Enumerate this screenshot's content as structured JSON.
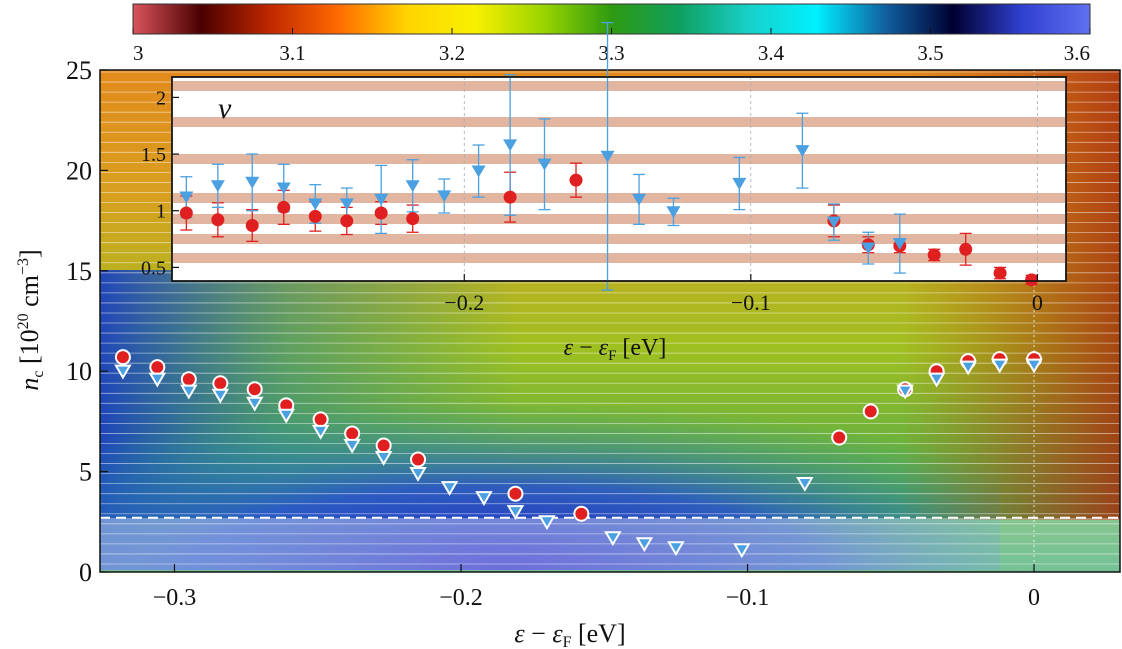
{
  "chart_data": [
    {
      "type": "heatmap",
      "name": "main-panel",
      "xlabel_parts": {
        "eps": "ε",
        "minus": " − ",
        "sub": "F",
        "unit": " [eV]"
      },
      "ylabel_parts": {
        "n": "n",
        "sub": "c",
        "unit_pre": " [10",
        "exp": "20",
        "unit_mid": " cm",
        "unit_exp": "−3",
        "unit_post": "]"
      },
      "xlim": [
        -0.326,
        0.03
      ],
      "ylim": [
        0,
        25
      ],
      "x_ticks": [
        -0.3,
        -0.2,
        -0.1,
        0
      ],
      "x_tick_labels": [
        "−0.3",
        "−0.2",
        "−0.1",
        "0"
      ],
      "y_ticks": [
        0,
        5,
        10,
        15,
        20,
        25
      ],
      "y_tick_labels": [
        "0",
        "5",
        "10",
        "15",
        "20",
        "25"
      ],
      "dashed_line_y": 2.7,
      "colorbar": {
        "range": [
          3.0,
          3.6
        ],
        "ticks": [
          3.0,
          3.1,
          3.2,
          3.3,
          3.4,
          3.5,
          3.6
        ],
        "tick_labels": [
          "3",
          "3.1",
          "3.2",
          "3.3",
          "3.4",
          "3.5",
          "3.6"
        ],
        "colors": [
          "#d8545c",
          "#4a0000",
          "#c02800",
          "#ff6a00",
          "#ffd400",
          "#f8f000",
          "#9ad400",
          "#2e9a10",
          "#10a060",
          "#18d0c8",
          "#00f0ff",
          "#1060a0",
          "#000030",
          "#3040d0",
          "#6070f0"
        ]
      },
      "series": [
        {
          "name": "circles",
          "marker": "circle",
          "color": "#e02020",
          "x": [
            -0.318,
            -0.306,
            -0.295,
            -0.284,
            -0.272,
            -0.261,
            -0.249,
            -0.238,
            -0.227,
            -0.215,
            -0.181,
            -0.158,
            -0.068,
            -0.057,
            -0.045,
            -0.034,
            -0.023,
            -0.012,
            0.0
          ],
          "y": [
            10.7,
            10.2,
            9.6,
            9.4,
            9.1,
            8.3,
            7.6,
            6.9,
            6.3,
            5.6,
            3.9,
            2.9,
            6.7,
            8.0,
            9.1,
            10.0,
            10.5,
            10.6,
            10.6
          ]
        },
        {
          "name": "triangles",
          "marker": "triangle-down",
          "color": "#4aa0e0",
          "x": [
            -0.318,
            -0.306,
            -0.295,
            -0.284,
            -0.272,
            -0.261,
            -0.249,
            -0.238,
            -0.227,
            -0.215,
            -0.204,
            -0.192,
            -0.181,
            -0.17,
            -0.147,
            -0.136,
            -0.125,
            -0.102,
            -0.08,
            -0.045,
            -0.034,
            -0.023,
            -0.012,
            0.0
          ],
          "y": [
            10.0,
            9.6,
            9.0,
            8.8,
            8.4,
            7.8,
            7.0,
            6.3,
            5.7,
            4.9,
            4.2,
            3.7,
            3.0,
            2.5,
            1.7,
            1.4,
            1.2,
            1.1,
            4.4,
            9.0,
            9.6,
            10.2,
            10.3,
            10.3
          ]
        }
      ]
    },
    {
      "type": "scatter",
      "name": "inset-panel",
      "title": "ν",
      "xlabel_parts": {
        "eps": "ε",
        "minus": " − ",
        "sub": "F",
        "unit": " [eV]"
      },
      "xlim": [
        -0.302,
        0.01
      ],
      "ylim": [
        0.38,
        2.18
      ],
      "x_ticks": [
        -0.2,
        -0.1,
        0
      ],
      "x_tick_labels": [
        "−0.2",
        "−0.1",
        "0"
      ],
      "y_ticks": [
        0.5,
        1,
        1.5,
        2
      ],
      "y_tick_labels": [
        "0.5",
        "1",
        "1.5",
        "2"
      ],
      "series": [
        {
          "name": "nu-circles",
          "marker": "circle",
          "color": "#e02020",
          "x": [
            -0.297,
            -0.286,
            -0.274,
            -0.263,
            -0.252,
            -0.241,
            -0.229,
            -0.218,
            -0.184,
            -0.161,
            -0.071,
            -0.059,
            -0.048,
            -0.036,
            -0.025,
            -0.013,
            -0.002
          ],
          "y": [
            0.98,
            0.92,
            0.87,
            1.03,
            0.95,
            0.91,
            0.98,
            0.93,
            1.12,
            1.27,
            0.91,
            0.7,
            0.69,
            0.61,
            0.66,
            0.45,
            0.39
          ],
          "err": [
            0.15,
            0.15,
            0.14,
            0.15,
            0.13,
            0.12,
            0.1,
            0.12,
            0.22,
            0.15,
            0.14,
            0.07,
            0.06,
            0.05,
            0.14,
            0.05,
            0.04
          ]
        },
        {
          "name": "nu-triangles",
          "marker": "triangle-down",
          "color": "#4aa0e0",
          "x": [
            -0.297,
            -0.286,
            -0.274,
            -0.263,
            -0.252,
            -0.241,
            -0.229,
            -0.218,
            -0.207,
            -0.195,
            -0.184,
            -0.172,
            -0.15,
            -0.139,
            -0.127,
            -0.104,
            -0.082,
            -0.071,
            -0.059,
            -0.048
          ],
          "y": [
            1.12,
            1.22,
            1.25,
            1.2,
            1.06,
            1.06,
            1.1,
            1.22,
            1.13,
            1.35,
            1.58,
            1.41,
            1.48,
            1.1,
            0.99,
            1.24,
            1.53,
            0.9,
            0.67,
            0.71
          ],
          "err": [
            0.18,
            0.19,
            0.25,
            0.21,
            0.17,
            0.14,
            0.3,
            0.23,
            0.15,
            0.23,
            0.62,
            0.4,
            1.18,
            0.22,
            0.12,
            0.23,
            0.33,
            0.16,
            0.14,
            0.26
          ]
        }
      ]
    }
  ]
}
